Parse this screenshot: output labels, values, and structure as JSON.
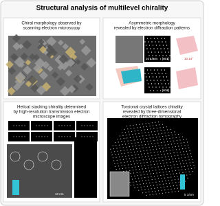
{
  "header": {
    "title": "Structural analysis of multilevel chirality"
  },
  "panels": [
    {
      "caption": [
        "Chiral morphology observed by",
        "scanning electron microscopy"
      ]
    },
    {
      "caption": [
        "Asymmetric morphology",
        "revealed by electron diffraction patterns"
      ],
      "labels": [
        "[001]",
        "[010]",
        "10.14°",
        "10 1/nm"
      ]
    },
    {
      "caption": [
        "Helical stacking chirality determined",
        "by high-resolution transmission electron",
        "microscope images"
      ],
      "labels": [
        "10 nm"
      ]
    },
    {
      "caption": [
        "Torsional crystal lattices chirality",
        "revealed by three-dimensional",
        "electron diffraction tomography"
      ],
      "labels": [
        "5 1/nm"
      ]
    }
  ]
}
